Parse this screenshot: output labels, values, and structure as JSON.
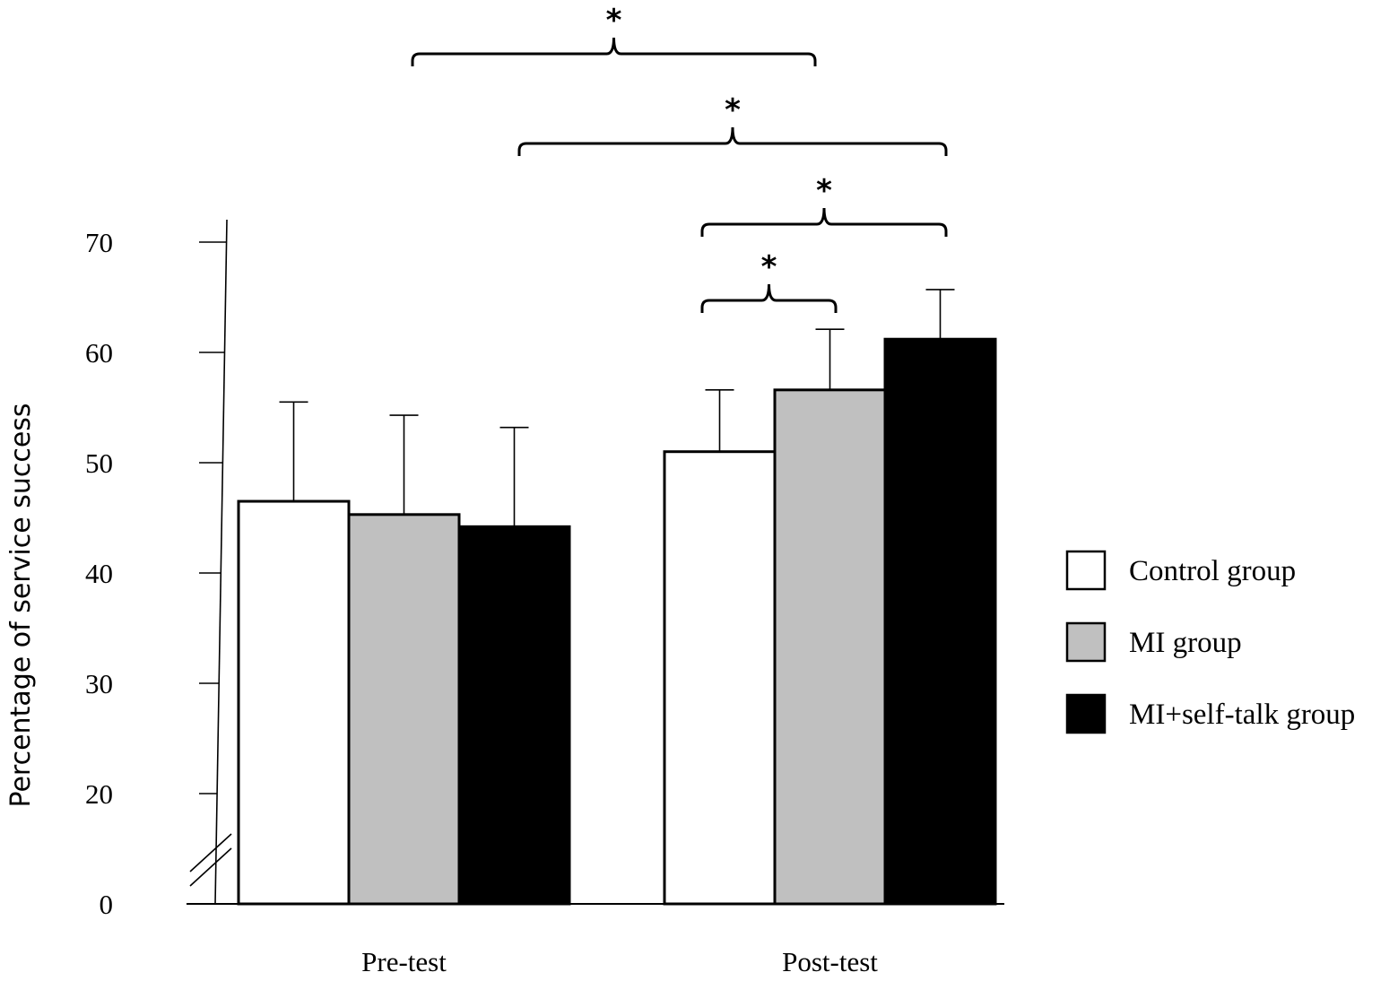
{
  "chart_data": {
    "type": "bar",
    "title": "",
    "xlabel": "",
    "ylabel": "Percentage of service success",
    "categories": [
      "Pre-test",
      "Post-test"
    ],
    "series": [
      {
        "name": "Control group",
        "color": "#ffffff",
        "values": [
          46.5,
          51.0
        ],
        "errors": [
          9.0,
          5.6
        ]
      },
      {
        "name": "MI group",
        "color": "#c0c0c0",
        "values": [
          45.3,
          56.6
        ],
        "errors": [
          9.0,
          5.5
        ]
      },
      {
        "name": "MI+self-talk group",
        "color": "#000000",
        "values": [
          44.2,
          61.2
        ],
        "errors": [
          9.0,
          4.5
        ]
      }
    ],
    "yticks": [
      0,
      20,
      30,
      40,
      50,
      60,
      70
    ],
    "ylim": [
      0,
      70
    ],
    "axis_break": "between 0 and 20",
    "legend_position": "right",
    "grid": false,
    "significance": [
      {
        "label": "*",
        "from": "Pre-test MI group",
        "to": "Post-test MI group"
      },
      {
        "label": "*",
        "from": "Pre-test MI+self-talk group",
        "to": "Post-test MI+self-talk group"
      },
      {
        "label": "*",
        "from": "Post-test Control group",
        "to": "Post-test MI+self-talk group"
      },
      {
        "label": "*",
        "from": "Post-test Control group",
        "to": "Post-test MI group"
      }
    ]
  }
}
